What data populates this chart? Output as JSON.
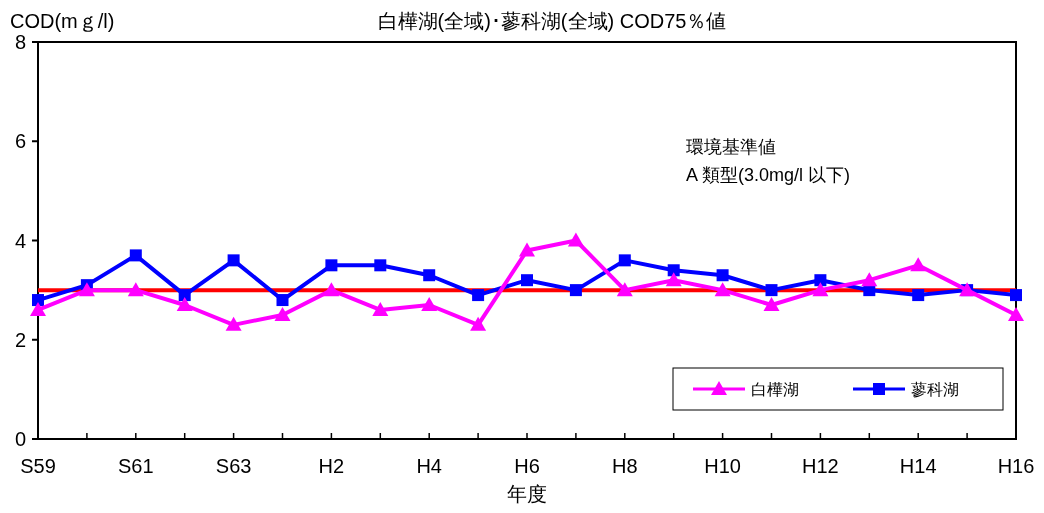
{
  "chart_data": {
    "type": "line",
    "title": "白樺湖(全域)･蓼科湖(全域)  COD75％値",
    "ylabel": "COD(mｇ/l)",
    "xlabel": "年度",
    "categories": [
      "S59",
      null,
      "S61",
      null,
      "S63",
      null,
      "H2",
      null,
      "H4",
      null,
      "H6",
      null,
      "H8",
      null,
      "H10",
      null,
      "H12",
      null,
      "H14",
      null,
      "H16"
    ],
    "series": [
      {
        "name": "白樺湖",
        "color": "#ff00ff",
        "marker": "triangle",
        "values": [
          2.6,
          3.0,
          3.0,
          2.7,
          2.3,
          2.5,
          3.0,
          2.6,
          2.7,
          2.3,
          3.8,
          4.0,
          3.0,
          3.2,
          3.0,
          2.7,
          3.0,
          3.2,
          3.5,
          3.0,
          2.5
        ]
      },
      {
        "name": "蓼科湖",
        "color": "#0000ff",
        "marker": "square",
        "values": [
          2.8,
          3.1,
          3.7,
          2.9,
          3.6,
          2.8,
          3.5,
          3.5,
          3.3,
          2.9,
          3.2,
          3.0,
          3.6,
          3.4,
          3.3,
          3.0,
          3.2,
          3.0,
          2.9,
          3.0,
          2.9
        ]
      }
    ],
    "ylim": [
      0,
      8
    ],
    "yticks": [
      0,
      2,
      4,
      6,
      8
    ],
    "ref_lines": [
      {
        "axis": "y",
        "value": 3,
        "color": "#ff0000"
      }
    ],
    "annotations": [
      "環境基準値",
      "A 類型(3.0mg/l 以下)"
    ],
    "legend": "bottom right"
  }
}
